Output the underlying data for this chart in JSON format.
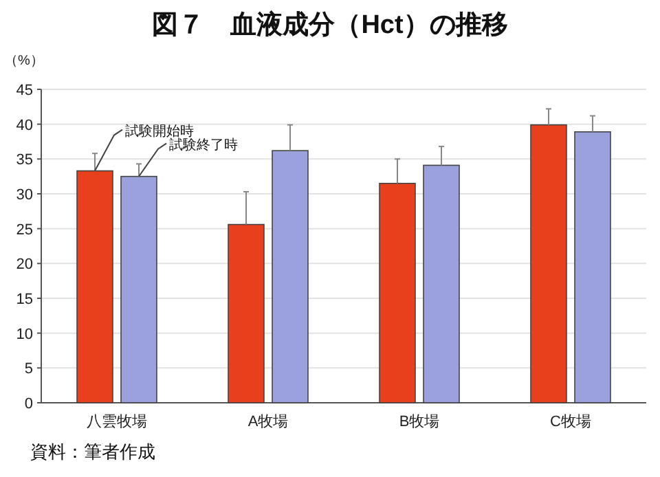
{
  "chart_data": {
    "type": "bar",
    "title": "図７　血液成分（Hct）の推移",
    "ylabel": "（%）",
    "categories": [
      "八雲牧場",
      "A牧場",
      "B牧場",
      "C牧場"
    ],
    "series": [
      {
        "name": "試験開始時",
        "color": "#e8401c",
        "values": [
          33.3,
          25.6,
          31.5,
          39.9
        ],
        "errors": [
          [
            33.3,
            35.8
          ],
          [
            25.6,
            30.3
          ],
          [
            31.5,
            35.0
          ],
          [
            39.9,
            42.2
          ]
        ]
      },
      {
        "name": "試験終了時",
        "color": "#9ba1dc",
        "values": [
          32.5,
          36.2,
          34.1,
          38.9
        ],
        "errors": [
          [
            32.5,
            34.3
          ],
          [
            36.2,
            39.9
          ],
          [
            34.1,
            36.8
          ],
          [
            38.9,
            41.2
          ]
        ]
      }
    ],
    "ylim": [
      0,
      45
    ],
    "yticks": [
      0,
      5,
      10,
      15,
      20,
      25,
      30,
      35,
      40,
      45
    ],
    "grid": "y",
    "legend": false,
    "annotations": [
      "資料：筆者作成"
    ]
  }
}
